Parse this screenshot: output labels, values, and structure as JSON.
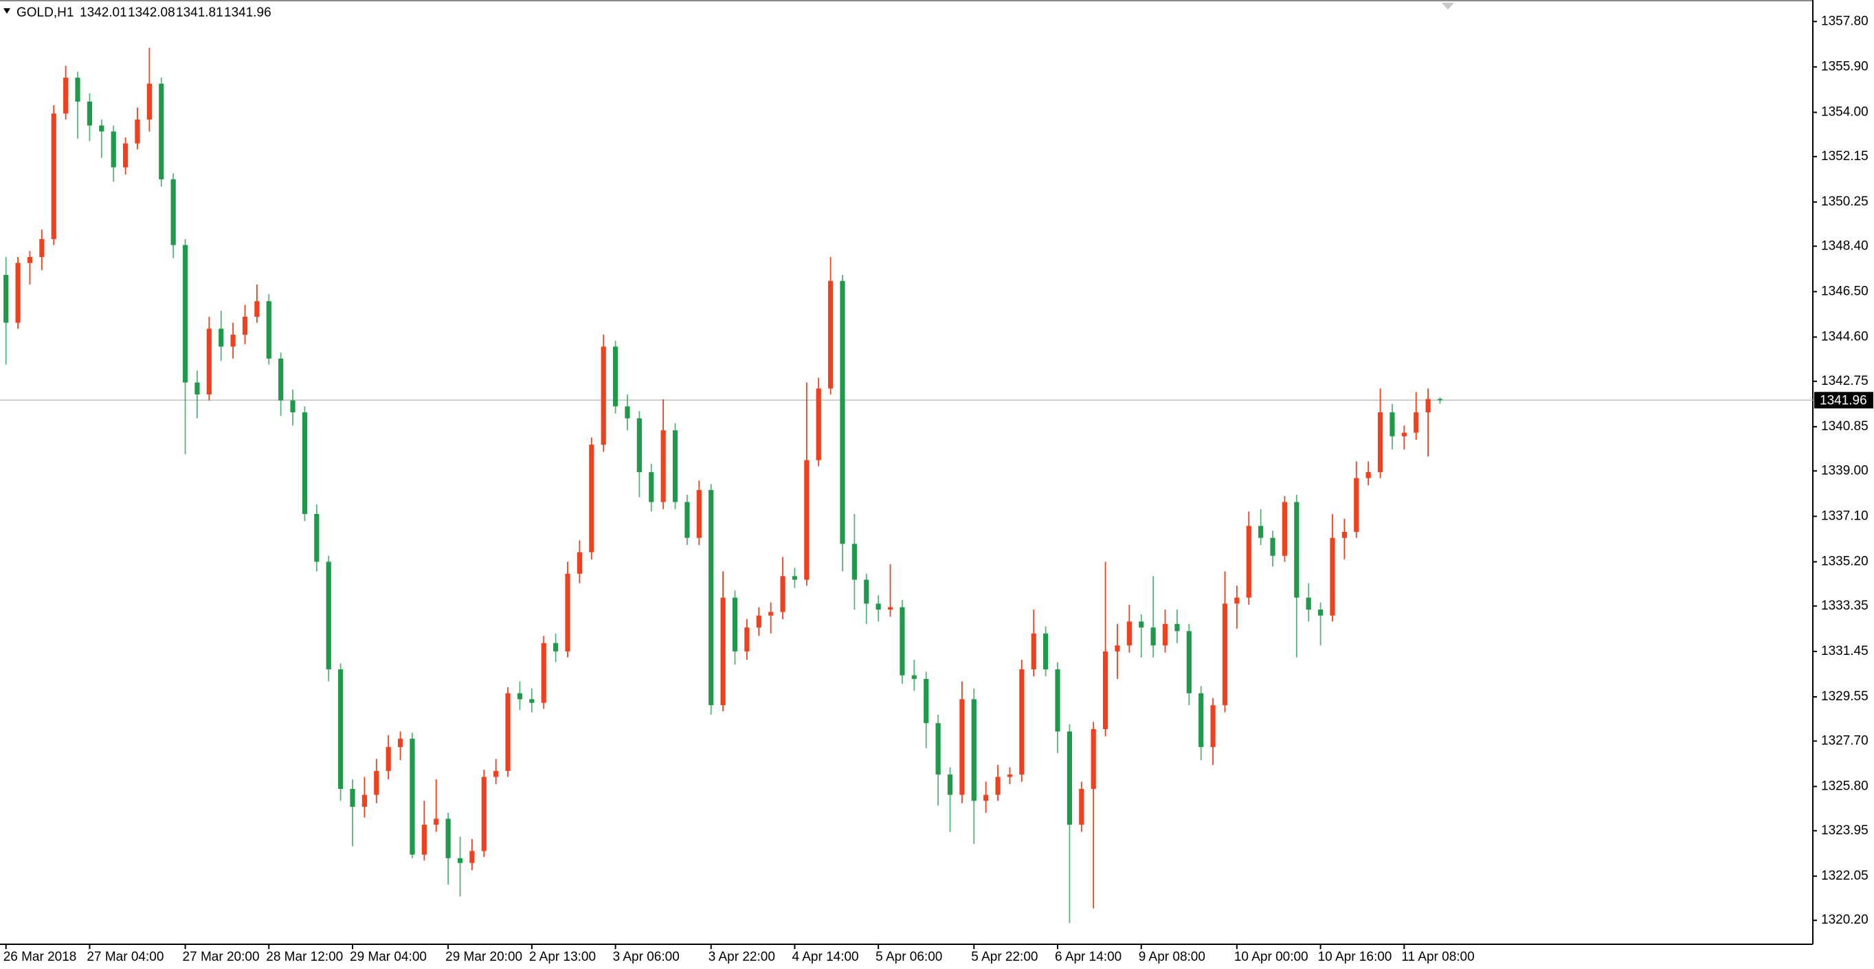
{
  "chart_data": {
    "type": "candlestick",
    "title": "GOLD,H1",
    "categories": [
      "26 Mar 2018",
      null,
      null,
      null,
      null,
      null,
      null,
      "27 Mar 04:00",
      null,
      null,
      null,
      null,
      null,
      null,
      null,
      "27 Mar 20:00",
      null,
      null,
      null,
      null,
      null,
      null,
      "28 Mar 12:00",
      null,
      null,
      null,
      null,
      null,
      null,
      "29 Mar 04:00",
      null,
      null,
      null,
      null,
      null,
      null,
      null,
      "29 Mar 20:00",
      null,
      null,
      null,
      null,
      null,
      null,
      "2 Apr 13:00",
      null,
      null,
      null,
      null,
      null,
      null,
      "3 Apr 06:00",
      null,
      null,
      null,
      null,
      null,
      null,
      null,
      "3 Apr 22:00",
      null,
      null,
      null,
      null,
      null,
      null,
      "4 Apr 14:00",
      null,
      null,
      null,
      null,
      null,
      null,
      "5 Apr 06:00",
      null,
      null,
      null,
      null,
      null,
      null,
      null,
      "5 Apr 22:00",
      null,
      null,
      null,
      null,
      null,
      null,
      "6 Apr 14:00",
      null,
      null,
      null,
      null,
      null,
      null,
      "9 Apr 08:00",
      null,
      null,
      null,
      null,
      null,
      null,
      null,
      "10 Apr 00:00",
      null,
      null,
      null,
      null,
      null,
      null,
      "10 Apr 16:00",
      null,
      null,
      null,
      null,
      null,
      null,
      "11 Apr 08:00",
      null,
      null,
      null
    ],
    "open": [
      1347.2,
      1345.2,
      1347.7,
      1347.95,
      1348.7,
      1353.95,
      1355.45,
      1354.45,
      1353.45,
      1353.2,
      1351.7,
      1352.7,
      1353.7,
      1355.2,
      1351.2,
      1348.45,
      1342.7,
      1342.2,
      1344.95,
      1344.2,
      1344.7,
      1345.45,
      1346.1,
      1343.7,
      1341.95,
      1341.45,
      1337.2,
      1335.2,
      1330.7,
      1325.7,
      1324.95,
      1325.45,
      1326.45,
      1327.45,
      1327.8,
      1322.95,
      1324.2,
      1324.45,
      1322.8,
      1322.6,
      1323.1,
      1326.2,
      1326.45,
      1329.7,
      1329.45,
      1329.3,
      1331.8,
      1331.45,
      1334.7,
      1335.6,
      1340.1,
      1344.2,
      1341.7,
      1341.2,
      1338.95,
      1337.7,
      1340.7,
      1337.7,
      1336.2,
      1338.2,
      1329.2,
      1333.7,
      1331.45,
      1332.45,
      1332.95,
      1333.1,
      1334.6,
      1334.45,
      1339.45,
      1342.45,
      1346.95,
      1335.95,
      1334.45,
      1333.45,
      1333.2,
      1333.3,
      1330.45,
      1330.3,
      1328.45,
      1326.3,
      1325.45,
      1329.45,
      1325.2,
      1325.45,
      1326.2,
      1326.3,
      1330.7,
      1332.2,
      1330.7,
      1328.1,
      1324.2,
      1325.7,
      1328.2,
      1331.45,
      1331.7,
      1332.7,
      1332.45,
      1331.7,
      1332.6,
      1332.3,
      1329.7,
      1327.45,
      1329.2,
      1333.45,
      1333.7,
      1336.7,
      1336.2,
      1335.45,
      1337.7,
      1333.7,
      1333.2,
      1332.95,
      1336.2,
      1336.45,
      1338.7,
      1338.95,
      1341.45,
      1340.45,
      1340.6,
      1341.45,
      1342.01
    ],
    "high": [
      1347.95,
      1347.95,
      1348.2,
      1349.1,
      1354.3,
      1355.95,
      1355.7,
      1354.8,
      1353.7,
      1353.45,
      1352.95,
      1354.2,
      1356.7,
      1355.45,
      1351.45,
      1348.7,
      1343.2,
      1345.45,
      1345.7,
      1345.2,
      1345.95,
      1346.8,
      1346.4,
      1343.95,
      1342.4,
      1341.7,
      1337.6,
      1335.45,
      1330.95,
      1326.1,
      1326.2,
      1326.95,
      1327.95,
      1328.1,
      1328.05,
      1325.2,
      1326.1,
      1324.7,
      1323.7,
      1323.6,
      1326.5,
      1326.95,
      1329.95,
      1330.2,
      1329.9,
      1332.1,
      1332.2,
      1335.2,
      1336.1,
      1340.4,
      1344.7,
      1344.45,
      1342.2,
      1341.5,
      1339.3,
      1342.0,
      1341.0,
      1338.0,
      1338.6,
      1338.45,
      1334.8,
      1334.0,
      1332.8,
      1333.3,
      1333.5,
      1335.4,
      1334.95,
      1342.7,
      1342.9,
      1347.95,
      1347.2,
      1337.2,
      1334.7,
      1333.8,
      1335.1,
      1333.6,
      1331.1,
      1330.6,
      1328.8,
      1326.6,
      1330.2,
      1329.9,
      1326.0,
      1326.7,
      1326.6,
      1331.1,
      1333.2,
      1332.5,
      1331.0,
      1328.4,
      1326.0,
      1328.5,
      1335.2,
      1332.6,
      1333.4,
      1333.0,
      1334.6,
      1333.2,
      1333.2,
      1332.6,
      1330.0,
      1329.5,
      1334.8,
      1334.2,
      1337.3,
      1337.4,
      1336.5,
      1337.95,
      1338.0,
      1334.3,
      1333.5,
      1337.2,
      1337.0,
      1339.4,
      1339.4,
      1342.45,
      1341.8,
      1340.9,
      1342.3,
      1342.45,
      1342.08
    ],
    "low": [
      1343.45,
      1344.95,
      1346.8,
      1347.4,
      1348.45,
      1353.7,
      1352.9,
      1352.8,
      1352.1,
      1351.1,
      1351.4,
      1352.45,
      1353.2,
      1350.9,
      1347.9,
      1339.7,
      1341.2,
      1341.95,
      1343.6,
      1343.7,
      1344.3,
      1345.2,
      1343.45,
      1341.3,
      1340.9,
      1336.9,
      1334.8,
      1330.2,
      1325.2,
      1323.3,
      1324.5,
      1325.1,
      1326.1,
      1326.9,
      1322.8,
      1322.7,
      1323.9,
      1321.7,
      1321.2,
      1322.3,
      1322.85,
      1325.9,
      1326.2,
      1329.0,
      1328.9,
      1329.05,
      1331.0,
      1331.2,
      1334.3,
      1335.3,
      1339.8,
      1341.4,
      1340.7,
      1337.9,
      1337.3,
      1337.4,
      1337.4,
      1335.9,
      1335.9,
      1328.8,
      1328.95,
      1330.9,
      1331.1,
      1332.1,
      1332.2,
      1332.8,
      1334.1,
      1334.2,
      1339.2,
      1342.2,
      1334.8,
      1333.2,
      1332.6,
      1332.7,
      1332.9,
      1330.1,
      1329.8,
      1327.4,
      1325.0,
      1323.9,
      1325.1,
      1323.4,
      1324.7,
      1325.2,
      1325.9,
      1326.0,
      1330.4,
      1330.4,
      1327.2,
      1320.1,
      1323.9,
      1320.7,
      1327.9,
      1330.3,
      1331.4,
      1331.2,
      1331.2,
      1331.4,
      1331.8,
      1329.2,
      1326.9,
      1326.7,
      1328.9,
      1332.4,
      1333.4,
      1335.9,
      1335.0,
      1335.2,
      1331.2,
      1332.7,
      1331.7,
      1332.7,
      1335.3,
      1336.2,
      1338.4,
      1338.7,
      1339.9,
      1339.9,
      1340.3,
      1339.6,
      1341.81
    ],
    "close": [
      1345.2,
      1347.7,
      1347.95,
      1348.7,
      1353.95,
      1355.45,
      1354.45,
      1353.45,
      1353.2,
      1351.7,
      1352.7,
      1353.7,
      1355.2,
      1351.2,
      1348.45,
      1342.7,
      1342.2,
      1344.95,
      1344.2,
      1344.7,
      1345.45,
      1346.1,
      1343.7,
      1341.95,
      1341.45,
      1337.2,
      1335.2,
      1330.7,
      1325.7,
      1324.95,
      1325.45,
      1326.45,
      1327.45,
      1327.8,
      1322.95,
      1324.2,
      1324.45,
      1322.8,
      1322.6,
      1323.1,
      1326.2,
      1326.45,
      1329.7,
      1329.45,
      1329.3,
      1331.8,
      1331.45,
      1334.7,
      1335.6,
      1340.1,
      1344.2,
      1341.7,
      1341.2,
      1338.95,
      1337.7,
      1340.7,
      1337.7,
      1336.2,
      1338.2,
      1329.2,
      1333.7,
      1331.45,
      1332.45,
      1332.95,
      1333.1,
      1334.6,
      1334.45,
      1339.45,
      1342.45,
      1346.95,
      1335.95,
      1334.45,
      1333.45,
      1333.2,
      1333.3,
      1330.45,
      1330.3,
      1328.45,
      1326.3,
      1325.45,
      1329.45,
      1325.2,
      1325.45,
      1326.2,
      1326.3,
      1330.7,
      1332.2,
      1330.7,
      1328.1,
      1324.2,
      1325.7,
      1328.2,
      1331.45,
      1331.7,
      1332.7,
      1332.45,
      1331.7,
      1332.6,
      1332.3,
      1329.7,
      1327.45,
      1329.2,
      1333.45,
      1333.7,
      1336.7,
      1336.2,
      1335.45,
      1337.7,
      1333.7,
      1333.2,
      1332.95,
      1336.2,
      1336.45,
      1338.7,
      1338.95,
      1341.45,
      1340.45,
      1340.6,
      1341.45,
      1342.01,
      1341.96
    ],
    "up_color": "#f0401e",
    "down_color": "#1f9a4a",
    "ylim": [
      1319.2,
      1358.7
    ],
    "yticks": [
      {
        "value": 1357.8,
        "label": "1357.80"
      },
      {
        "value": 1355.9,
        "label": "1355.90"
      },
      {
        "value": 1354,
        "label": "1354.00"
      },
      {
        "value": 1352.15,
        "label": "1352.15"
      },
      {
        "value": 1350.25,
        "label": "1350.25"
      },
      {
        "value": 1348.4,
        "label": "1348.40"
      },
      {
        "value": 1346.5,
        "label": "1346.50"
      },
      {
        "value": 1344.6,
        "label": "1344.60"
      },
      {
        "value": 1342.75,
        "label": "1342.75"
      },
      {
        "value": 1340.85,
        "label": "1340.85"
      },
      {
        "value": 1339,
        "label": "1339.00"
      },
      {
        "value": 1337.1,
        "label": "1337.10"
      },
      {
        "value": 1335.2,
        "label": "1335.20"
      },
      {
        "value": 1333.35,
        "label": "1333.35"
      },
      {
        "value": 1331.45,
        "label": "1331.45"
      },
      {
        "value": 1329.55,
        "label": "1329.55"
      },
      {
        "value": 1327.7,
        "label": "1327.70"
      },
      {
        "value": 1325.8,
        "label": "1325.80"
      },
      {
        "value": 1323.95,
        "label": "1323.95"
      },
      {
        "value": 1322.05,
        "label": "1322.05"
      },
      {
        "value": 1320.2,
        "label": "1320.20"
      }
    ],
    "grid": false
  }
}
